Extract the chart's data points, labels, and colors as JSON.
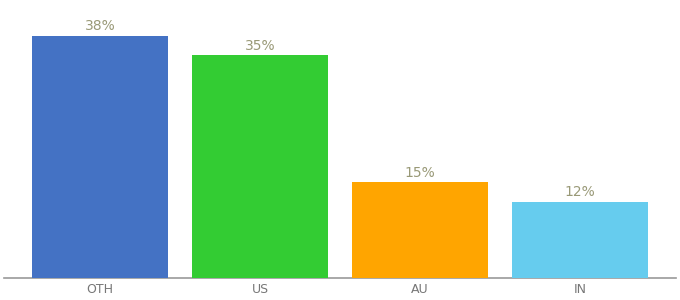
{
  "categories": [
    "OTH",
    "US",
    "AU",
    "IN"
  ],
  "values": [
    38,
    35,
    15,
    12
  ],
  "bar_colors": [
    "#4472C4",
    "#33CC33",
    "#FFA500",
    "#66CCEE"
  ],
  "ylim": [
    0,
    43
  ],
  "figsize": [
    6.8,
    3.0
  ],
  "dpi": 100,
  "background_color": "#ffffff",
  "bar_width": 0.85,
  "label_fontsize": 10,
  "tick_fontsize": 9,
  "label_color": "#999977"
}
